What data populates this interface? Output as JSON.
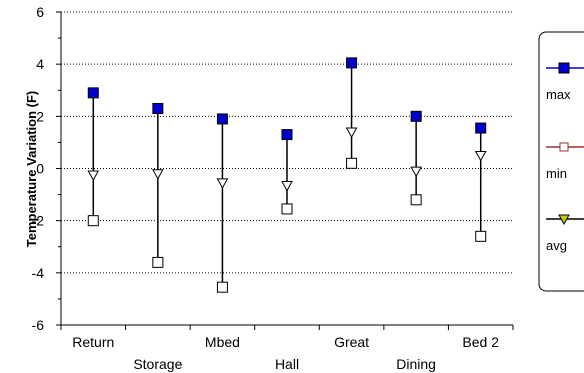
{
  "chart_data": {
    "type": "scatter",
    "subtype": "high-low-range",
    "ylabel": "Temperature Variation (F)",
    "xlabel": "",
    "title": "",
    "ylim": [
      -6,
      6
    ],
    "yticks": [
      "-6",
      "-4",
      "-2",
      "0",
      "2",
      "4",
      "6"
    ],
    "ytick_values": [
      -6,
      -4,
      -2,
      0,
      2,
      4,
      6
    ],
    "grid": "horizontal dotted",
    "legend_placement": "right",
    "categories": [
      "Return",
      "Storage",
      "Mbed",
      "Hall",
      "Great",
      "Dining",
      "Bed 2"
    ],
    "series": [
      {
        "name": "max",
        "values": [
          2.9,
          2.3,
          1.9,
          1.3,
          4.05,
          2.0,
          1.55
        ],
        "color": "#0000cc",
        "marker": "filled-square"
      },
      {
        "name": "min",
        "values": [
          -2.0,
          -3.6,
          -4.55,
          -1.55,
          0.2,
          -1.2,
          -2.6
        ],
        "color": "#993333",
        "marker": "open-square"
      },
      {
        "name": "avg",
        "values": [
          -0.25,
          -0.2,
          -0.55,
          -0.65,
          1.4,
          -0.1,
          0.5
        ],
        "color": "#cccc00",
        "marker": "triangle-down"
      }
    ]
  }
}
